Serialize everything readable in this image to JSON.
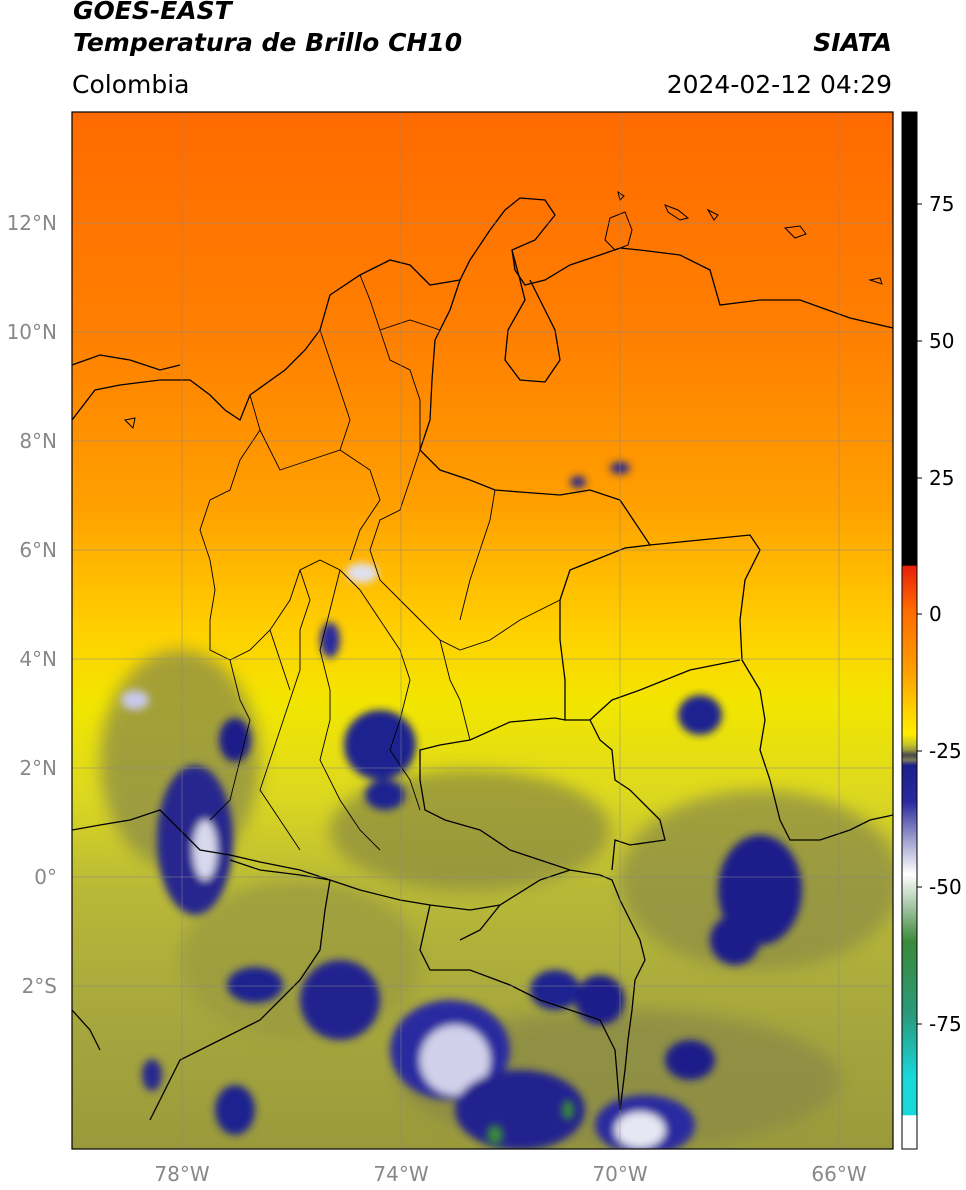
{
  "header": {
    "satellite": "GOES-EAST",
    "product": "Temperatura de Brillo CH10",
    "region": "Colombia",
    "source": "SIATA",
    "datetime": "2024-02-12 04:29"
  },
  "map": {
    "lon_labels": [
      "78°W",
      "74°W",
      "70°W",
      "66°W"
    ],
    "lat_labels": [
      "12°N",
      "10°N",
      "8°N",
      "6°N",
      "4°N",
      "2°N",
      "0°",
      "2°S"
    ]
  },
  "colorbar": {
    "ticks": [
      "75",
      "50",
      "25",
      "0",
      "-25",
      "-50",
      "-75"
    ],
    "colors": {
      "warm_black": "#000000",
      "red": "#e8200a",
      "orange": "#ff8c00",
      "yellow": "#ffee00",
      "olive": "#8f8f3a",
      "navy": "#1b1f8a",
      "white": "#ffffff",
      "green": "#3a8a3a",
      "cyan": "#18d8d8"
    }
  }
}
